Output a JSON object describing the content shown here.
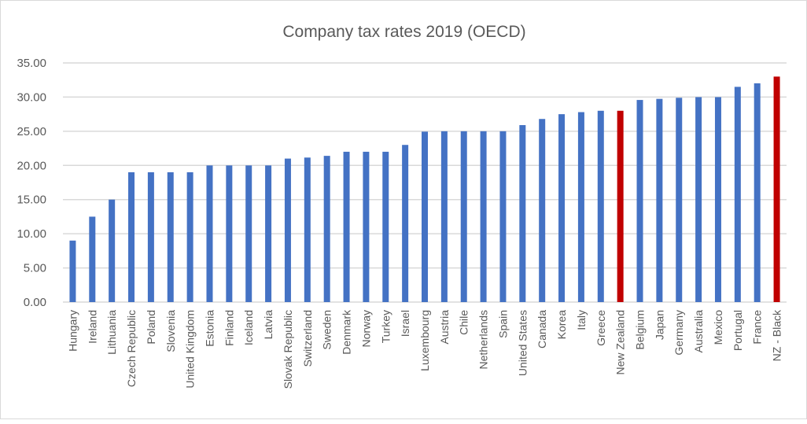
{
  "chart_data": {
    "type": "bar",
    "title": "Company  tax rates 2019 (OECD)",
    "xlabel": "",
    "ylabel": "",
    "ylim": [
      0,
      35
    ],
    "yticks": [
      "0.00",
      "5.00",
      "10.00",
      "15.00",
      "20.00",
      "25.00",
      "30.00",
      "35.00"
    ],
    "grid": true,
    "colors": {
      "default": "#4472C4",
      "highlight": "#C00000",
      "grid": "#d9d9d9",
      "text": "#595959"
    },
    "categories": [
      "Hungary",
      "Ireland",
      "Lithuania",
      "Czech Republic",
      "Poland",
      "Slovenia",
      "United Kingdom",
      "Estonia",
      "Finland",
      "Iceland",
      "Latvia",
      "Slovak Republic",
      "Switzerland",
      "Sweden",
      "Denmark",
      "Norway",
      "Turkey",
      "Israel",
      "Luxembourg",
      "Austria",
      "Chile",
      "Netherlands",
      "Spain",
      "United States",
      "Canada",
      "Korea",
      "Italy",
      "Greece",
      "New Zealand",
      "Belgium",
      "Japan",
      "Germany",
      "Australia",
      "Mexico",
      "Portugal",
      "France",
      "NZ  - Black"
    ],
    "values": [
      9,
      12.5,
      15,
      19,
      19,
      19,
      19,
      20,
      20,
      20,
      20,
      21,
      21.15,
      21.4,
      22,
      22,
      22,
      23,
      24.94,
      25,
      25,
      25,
      25,
      25.9,
      26.8,
      27.5,
      27.8,
      28,
      28,
      29.58,
      29.74,
      29.9,
      30,
      30,
      31.5,
      32.02,
      33
    ],
    "highlighted": [
      "New Zealand",
      "NZ  - Black"
    ]
  }
}
